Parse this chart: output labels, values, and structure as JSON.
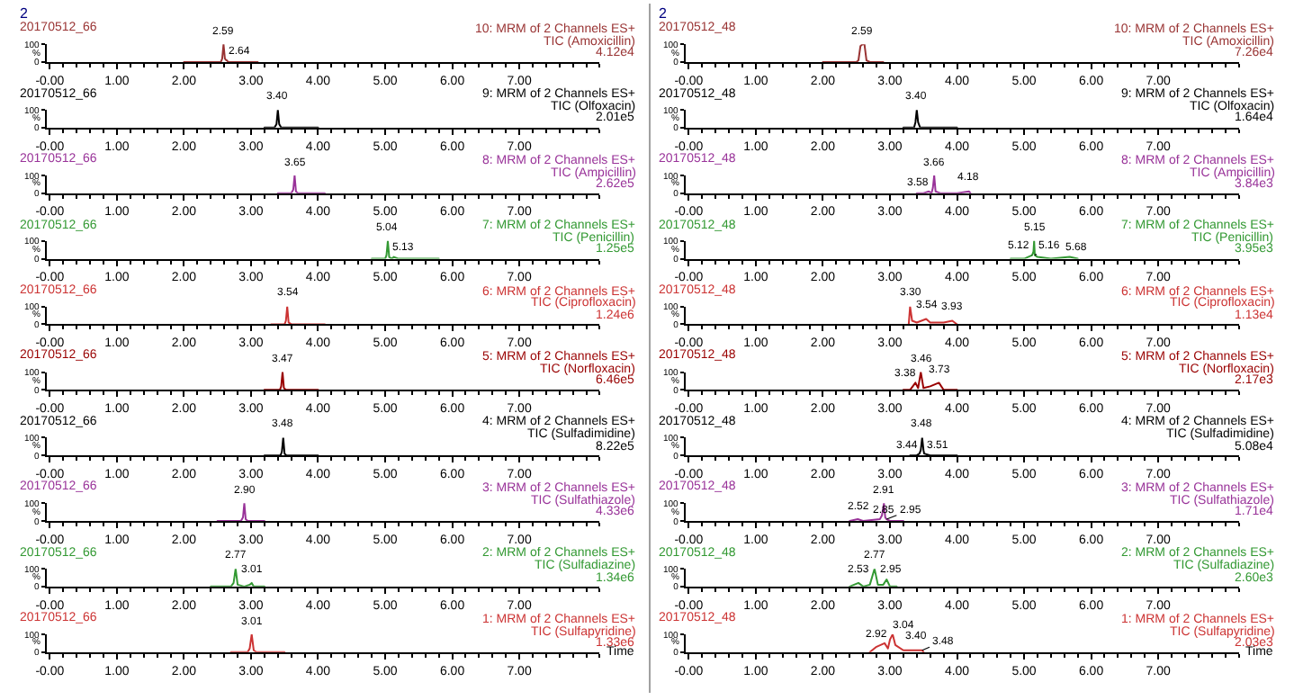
{
  "chart_data": [
    {
      "type": "line",
      "title": "20170512_66",
      "subtitle": "10: MRM of 2 Channels ES+",
      "ylabel": "%",
      "annotations": [
        "2",
        "TIC (Amoxicillin)",
        "4.12e4",
        {
          "text": "2.59",
          "x": 2.59,
          "y": 100
        },
        {
          "text": "2.64",
          "x": 2.64,
          "y": 10
        }
      ],
      "series": [
        {
          "color": "#993333",
          "x": [
            2.0,
            2.55,
            2.57,
            2.59,
            2.61,
            2.63,
            2.64,
            2.66,
            3.1
          ],
          "values": [
            0,
            0,
            20,
            100,
            20,
            10,
            10,
            0,
            0
          ]
        }
      ],
      "xlim": [
        -0.05,
        8.2
      ],
      "xticks": [
        {
          "value": 0,
          "label": "-0.00"
        },
        {
          "value": 1,
          "label": "1.00"
        },
        {
          "value": 2,
          "label": "2.00"
        },
        {
          "value": 3,
          "label": "3.00"
        },
        {
          "value": 4,
          "label": "4.00"
        },
        {
          "value": 5,
          "label": "5.00"
        },
        {
          "value": 6,
          "label": "6.00"
        },
        {
          "value": 7,
          "label": "7.00"
        }
      ],
      "ylim": [
        0,
        100
      ],
      "yticks": [
        0,
        100
      ]
    },
    {
      "type": "line",
      "title": "20170512_66",
      "subtitle": "9: MRM of 2 Channels ES+",
      "ylabel": "%",
      "annotations": [
        "TIC (Olfoxacin)",
        "2.01e5",
        {
          "text": "3.40",
          "x": 3.4,
          "y": 100
        }
      ],
      "series": [
        {
          "color": "#000000",
          "x": [
            3.2,
            3.35,
            3.38,
            3.4,
            3.42,
            3.45,
            4.0
          ],
          "values": [
            0,
            0,
            20,
            100,
            20,
            0,
            0
          ]
        }
      ],
      "xlim": [
        -0.05,
        8.2
      ],
      "xticks": [
        {
          "value": 0,
          "label": "-0.00"
        },
        {
          "value": 1,
          "label": "1.00"
        },
        {
          "value": 2,
          "label": "2.00"
        },
        {
          "value": 3,
          "label": "3.00"
        },
        {
          "value": 4,
          "label": "4.00"
        },
        {
          "value": 5,
          "label": "5.00"
        },
        {
          "value": 6,
          "label": "6.00"
        },
        {
          "value": 7,
          "label": "7.00"
        }
      ],
      "ylim": [
        0,
        100
      ],
      "yticks": [
        0,
        100
      ]
    },
    {
      "type": "line",
      "title": "20170512_66",
      "subtitle": "8: MRM of 2 Channels ES+",
      "ylabel": "%",
      "annotations": [
        "TIC (Ampicillin)",
        "2.62e5",
        {
          "text": "3.65",
          "x": 3.65,
          "y": 100
        }
      ],
      "series": [
        {
          "color": "#993399",
          "x": [
            3.4,
            3.6,
            3.63,
            3.65,
            3.67,
            3.7,
            4.1
          ],
          "values": [
            0,
            0,
            20,
            100,
            10,
            0,
            0
          ]
        }
      ],
      "xlim": [
        -0.05,
        8.2
      ],
      "xticks": [
        {
          "value": 0,
          "label": "-0.00"
        },
        {
          "value": 1,
          "label": "1.00"
        },
        {
          "value": 2,
          "label": "2.00"
        },
        {
          "value": 3,
          "label": "3.00"
        },
        {
          "value": 4,
          "label": "4.00"
        },
        {
          "value": 5,
          "label": "5.00"
        },
        {
          "value": 6,
          "label": "6.00"
        },
        {
          "value": 7,
          "label": "7.00"
        }
      ],
      "ylim": [
        0,
        100
      ],
      "yticks": [
        0,
        100
      ]
    },
    {
      "type": "line",
      "title": "20170512_66",
      "subtitle": "7: MRM of 2 Channels ES+",
      "ylabel": "%",
      "annotations": [
        "TIC (Penicillin)",
        "1.25e5",
        {
          "text": "5.04",
          "x": 5.04,
          "y": 100
        },
        {
          "text": "5.13",
          "x": 5.13,
          "y": 10
        }
      ],
      "series": [
        {
          "color": "#339933",
          "x": [
            4.8,
            5.0,
            5.02,
            5.04,
            5.06,
            5.1,
            5.13,
            5.2,
            5.8
          ],
          "values": [
            0,
            0,
            20,
            100,
            10,
            0,
            10,
            0,
            0
          ]
        }
      ],
      "xlim": [
        -0.05,
        8.2
      ],
      "xticks": [
        {
          "value": 0,
          "label": "-0.00"
        },
        {
          "value": 1,
          "label": "1.00"
        },
        {
          "value": 2,
          "label": "2.00"
        },
        {
          "value": 3,
          "label": "3.00"
        },
        {
          "value": 4,
          "label": "4.00"
        },
        {
          "value": 5,
          "label": "5.00"
        },
        {
          "value": 6,
          "label": "6.00"
        },
        {
          "value": 7,
          "label": "7.00"
        }
      ],
      "ylim": [
        0,
        100
      ],
      "yticks": [
        0,
        100
      ]
    },
    {
      "type": "line",
      "title": "20170512_66",
      "subtitle": "6: MRM of 2 Channels ES+",
      "ylabel": "%",
      "annotations": [
        "TIC (Ciprofloxacin)",
        "1.24e6",
        {
          "text": "3.54",
          "x": 3.54,
          "y": 100
        }
      ],
      "series": [
        {
          "color": "#cc3333",
          "x": [
            3.3,
            3.5,
            3.52,
            3.54,
            3.56,
            3.6,
            4.1
          ],
          "values": [
            0,
            0,
            20,
            100,
            10,
            0,
            0
          ]
        }
      ],
      "xlim": [
        -0.05,
        8.2
      ],
      "xticks": [
        {
          "value": 0,
          "label": "-0.00"
        },
        {
          "value": 1,
          "label": "1.00"
        },
        {
          "value": 2,
          "label": "2.00"
        },
        {
          "value": 3,
          "label": "3.00"
        },
        {
          "value": 4,
          "label": "4.00"
        },
        {
          "value": 5,
          "label": "5.00"
        },
        {
          "value": 6,
          "label": "6.00"
        },
        {
          "value": 7,
          "label": "7.00"
        }
      ],
      "ylim": [
        0,
        100
      ],
      "yticks": [
        0,
        100
      ]
    },
    {
      "type": "line",
      "title": "20170512_66",
      "subtitle": "5: MRM of 2 Channels ES+",
      "ylabel": "%",
      "annotations": [
        "TIC (Norfloxacin)",
        "6.46e5",
        {
          "text": "3.47",
          "x": 3.47,
          "y": 100
        }
      ],
      "series": [
        {
          "color": "#990000",
          "x": [
            3.2,
            3.43,
            3.45,
            3.47,
            3.49,
            3.52,
            4.0
          ],
          "values": [
            0,
            0,
            20,
            100,
            10,
            0,
            0
          ]
        }
      ],
      "xlim": [
        -0.05,
        8.2
      ],
      "xticks": [
        {
          "value": 0,
          "label": "-0.00"
        },
        {
          "value": 1,
          "label": "1.00"
        },
        {
          "value": 2,
          "label": "2.00"
        },
        {
          "value": 3,
          "label": "3.00"
        },
        {
          "value": 4,
          "label": "4.00"
        },
        {
          "value": 5,
          "label": "5.00"
        },
        {
          "value": 6,
          "label": "6.00"
        },
        {
          "value": 7,
          "label": "7.00"
        }
      ],
      "ylim": [
        0,
        100
      ],
      "yticks": [
        0,
        100
      ]
    },
    {
      "type": "line",
      "title": "20170512_66",
      "subtitle": "4: MRM of 2 Channels ES+",
      "ylabel": "%",
      "annotations": [
        "TIC (Sulfadimidine)",
        "8.22e5",
        {
          "text": "3.48",
          "x": 3.48,
          "y": 100
        }
      ],
      "series": [
        {
          "color": "#000000",
          "x": [
            3.2,
            3.44,
            3.46,
            3.48,
            3.5,
            3.53,
            4.0
          ],
          "values": [
            0,
            0,
            20,
            100,
            10,
            0,
            0
          ]
        }
      ],
      "xlim": [
        -0.05,
        8.2
      ],
      "xticks": [
        {
          "value": 0,
          "label": "-0.00"
        },
        {
          "value": 1,
          "label": "1.00"
        },
        {
          "value": 2,
          "label": "2.00"
        },
        {
          "value": 3,
          "label": "3.00"
        },
        {
          "value": 4,
          "label": "4.00"
        },
        {
          "value": 5,
          "label": "5.00"
        },
        {
          "value": 6,
          "label": "6.00"
        },
        {
          "value": 7,
          "label": "7.00"
        }
      ],
      "ylim": [
        0,
        100
      ],
      "yticks": [
        0,
        100
      ]
    },
    {
      "type": "line",
      "title": "20170512_66",
      "subtitle": "3: MRM of 2 Channels ES+",
      "ylabel": "%",
      "annotations": [
        "TIC (Sulfathiazole)",
        "4.33e6",
        {
          "text": "2.90",
          "x": 2.9,
          "y": 100
        }
      ],
      "series": [
        {
          "color": "#993399",
          "x": [
            2.5,
            2.85,
            2.88,
            2.9,
            2.92,
            2.95,
            3.2
          ],
          "values": [
            0,
            0,
            20,
            100,
            10,
            0,
            0
          ]
        }
      ],
      "xlim": [
        -0.05,
        8.2
      ],
      "xticks": [
        {
          "value": 0,
          "label": "-0.00"
        },
        {
          "value": 1,
          "label": "1.00"
        },
        {
          "value": 2,
          "label": "2.00"
        },
        {
          "value": 3,
          "label": "3.00"
        },
        {
          "value": 4,
          "label": "4.00"
        },
        {
          "value": 5,
          "label": "5.00"
        },
        {
          "value": 6,
          "label": "6.00"
        },
        {
          "value": 7,
          "label": "7.00"
        }
      ],
      "ylim": [
        0,
        100
      ],
      "yticks": [
        0,
        100
      ]
    },
    {
      "type": "line",
      "title": "20170512_66",
      "subtitle": "2: MRM of 2 Channels ES+",
      "ylabel": "%",
      "annotations": [
        "TIC (Sulfadiazine)",
        "1.34e6",
        {
          "text": "2.77",
          "x": 2.77,
          "y": 100
        },
        {
          "text": "3.01",
          "x": 3.01,
          "y": 20
        }
      ],
      "series": [
        {
          "color": "#339933",
          "x": [
            2.4,
            2.7,
            2.74,
            2.77,
            2.8,
            2.9,
            2.98,
            3.01,
            3.04,
            3.2
          ],
          "values": [
            0,
            0,
            20,
            100,
            10,
            0,
            10,
            20,
            0,
            0
          ]
        }
      ],
      "xlim": [
        -0.05,
        8.2
      ],
      "xticks": [
        {
          "value": 0,
          "label": "-0.00"
        },
        {
          "value": 1,
          "label": "1.00"
        },
        {
          "value": 2,
          "label": "2.00"
        },
        {
          "value": 3,
          "label": "3.00"
        },
        {
          "value": 4,
          "label": "4.00"
        },
        {
          "value": 5,
          "label": "5.00"
        },
        {
          "value": 6,
          "label": "6.00"
        },
        {
          "value": 7,
          "label": "7.00"
        }
      ],
      "ylim": [
        0,
        100
      ],
      "yticks": [
        0,
        100
      ]
    },
    {
      "type": "line",
      "title": "20170512_66",
      "subtitle": "1: MRM of 2 Channels ES+",
      "ylabel": "%",
      "xlabel": "Time",
      "annotations": [
        "TIC (Sulfapyridine)",
        "1.33e6",
        {
          "text": "3.01",
          "x": 3.01,
          "y": 100
        }
      ],
      "series": [
        {
          "color": "#cc3333",
          "x": [
            2.7,
            2.95,
            2.98,
            3.01,
            3.04,
            3.08,
            3.5
          ],
          "values": [
            0,
            0,
            20,
            100,
            10,
            0,
            0
          ]
        }
      ],
      "xlim": [
        -0.05,
        8.2
      ],
      "xticks": [
        {
          "value": 0,
          "label": "-0.00"
        },
        {
          "value": 1,
          "label": "1.00"
        },
        {
          "value": 2,
          "label": "2.00"
        },
        {
          "value": 3,
          "label": "3.00"
        },
        {
          "value": 4,
          "label": "4.00"
        },
        {
          "value": 5,
          "label": "5.00"
        },
        {
          "value": 6,
          "label": "6.00"
        },
        {
          "value": 7,
          "label": "7.00"
        }
      ],
      "ylim": [
        0,
        100
      ],
      "yticks": [
        0,
        100
      ]
    },
    {
      "type": "line",
      "title": "20170512_48",
      "subtitle": "10: MRM of 2 Channels ES+",
      "ylabel": "%",
      "annotations": [
        "2",
        "TIC (Amoxicillin)",
        "7.26e4",
        {
          "text": "2.59",
          "x": 2.59,
          "y": 100
        }
      ],
      "series": [
        {
          "color": "#993333",
          "x": [
            2.0,
            2.5,
            2.53,
            2.56,
            2.59,
            2.62,
            2.65,
            2.7,
            2.9
          ],
          "values": [
            0,
            0,
            10,
            90,
            100,
            100,
            10,
            0,
            0
          ]
        }
      ],
      "xlim": [
        -0.05,
        8.2
      ],
      "xticks": [
        {
          "value": 0,
          "label": "-0.00"
        },
        {
          "value": 1,
          "label": "1.00"
        },
        {
          "value": 2,
          "label": "2.00"
        },
        {
          "value": 3,
          "label": "3.00"
        },
        {
          "value": 4,
          "label": "4.00"
        },
        {
          "value": 5,
          "label": "5.00"
        },
        {
          "value": 6,
          "label": "6.00"
        },
        {
          "value": 7,
          "label": "7.00"
        }
      ],
      "ylim": [
        0,
        100
      ],
      "yticks": [
        0,
        100
      ]
    },
    {
      "type": "line",
      "title": "20170512_48",
      "subtitle": "9: MRM of 2 Channels ES+",
      "ylabel": "%",
      "annotations": [
        "TIC (Olfoxacin)",
        "1.64e4",
        {
          "text": "3.40",
          "x": 3.4,
          "y": 100
        }
      ],
      "series": [
        {
          "color": "#000000",
          "x": [
            3.2,
            3.36,
            3.38,
            3.4,
            3.42,
            3.45,
            4.0
          ],
          "values": [
            0,
            0,
            30,
            100,
            30,
            0,
            0
          ]
        }
      ],
      "xlim": [
        -0.05,
        8.2
      ],
      "xticks": [
        {
          "value": 0,
          "label": "-0.00"
        },
        {
          "value": 1,
          "label": "1.00"
        },
        {
          "value": 2,
          "label": "2.00"
        },
        {
          "value": 3,
          "label": "3.00"
        },
        {
          "value": 4,
          "label": "4.00"
        },
        {
          "value": 5,
          "label": "5.00"
        },
        {
          "value": 6,
          "label": "6.00"
        },
        {
          "value": 7,
          "label": "7.00"
        }
      ],
      "ylim": [
        0,
        100
      ],
      "yticks": [
        0,
        100
      ]
    },
    {
      "type": "line",
      "title": "20170512_48",
      "subtitle": "8: MRM of 2 Channels ES+",
      "ylabel": "%",
      "annotations": [
        "TIC (Ampicillin)",
        "3.84e3",
        {
          "text": "3.58",
          "x": 3.58,
          "y": 10
        },
        {
          "text": "3.66",
          "x": 3.66,
          "y": 100
        },
        {
          "text": "4.18",
          "x": 4.18,
          "y": 10
        }
      ],
      "series": [
        {
          "color": "#993399",
          "x": [
            3.4,
            3.5,
            3.58,
            3.62,
            3.64,
            3.66,
            3.68,
            3.75,
            4.0,
            4.18,
            4.2
          ],
          "values": [
            0,
            0,
            10,
            0,
            30,
            100,
            10,
            0,
            0,
            10,
            0
          ]
        }
      ],
      "xlim": [
        -0.05,
        8.2
      ],
      "xticks": [
        {
          "value": 0,
          "label": "-0.00"
        },
        {
          "value": 1,
          "label": "1.00"
        },
        {
          "value": 2,
          "label": "2.00"
        },
        {
          "value": 3,
          "label": "3.00"
        },
        {
          "value": 4,
          "label": "4.00"
        },
        {
          "value": 5,
          "label": "5.00"
        },
        {
          "value": 6,
          "label": "6.00"
        },
        {
          "value": 7,
          "label": "7.00"
        }
      ],
      "ylim": [
        0,
        100
      ],
      "yticks": [
        0,
        100
      ]
    },
    {
      "type": "line",
      "title": "20170512_48",
      "subtitle": "7: MRM of 2 Channels ES+",
      "ylabel": "%",
      "annotations": [
        "TIC (Penicillin)",
        "3.95e3",
        {
          "text": "5.12",
          "x": 5.12,
          "y": 20
        },
        {
          "text": "5.15",
          "x": 5.15,
          "y": 100
        },
        {
          "text": "5.16",
          "x": 5.16,
          "y": 20
        },
        {
          "text": "5.68",
          "x": 5.68,
          "y": 10
        }
      ],
      "series": [
        {
          "color": "#339933",
          "x": [
            4.8,
            5.0,
            5.12,
            5.14,
            5.15,
            5.16,
            5.2,
            5.4,
            5.68,
            5.8
          ],
          "values": [
            0,
            0,
            20,
            40,
            100,
            20,
            10,
            0,
            10,
            0
          ]
        }
      ],
      "xlim": [
        -0.05,
        8.2
      ],
      "xticks": [
        {
          "value": 0,
          "label": "-0.00"
        },
        {
          "value": 1,
          "label": "1.00"
        },
        {
          "value": 2,
          "label": "2.00"
        },
        {
          "value": 3,
          "label": "3.00"
        },
        {
          "value": 4,
          "label": "4.00"
        },
        {
          "value": 5,
          "label": "5.00"
        },
        {
          "value": 6,
          "label": "6.00"
        },
        {
          "value": 7,
          "label": "7.00"
        }
      ],
      "ylim": [
        0,
        100
      ],
      "yticks": [
        0,
        100
      ]
    },
    {
      "type": "line",
      "title": "20170512_48",
      "subtitle": "6: MRM of 2 Channels ES+",
      "ylabel": "%",
      "annotations": [
        "TIC (Ciprofloxacin)",
        "1.13e4",
        {
          "text": "3.30",
          "x": 3.3,
          "y": 100
        },
        {
          "text": "3.54",
          "x": 3.54,
          "y": 30
        },
        {
          "text": "3.93",
          "x": 3.93,
          "y": 20
        }
      ],
      "series": [
        {
          "color": "#cc3333",
          "x": [
            3.28,
            3.3,
            3.33,
            3.4,
            3.54,
            3.6,
            3.8,
            3.93,
            4.0
          ],
          "values": [
            0,
            100,
            20,
            10,
            30,
            10,
            10,
            20,
            0
          ]
        }
      ],
      "xlim": [
        -0.05,
        8.2
      ],
      "xticks": [
        {
          "value": 0,
          "label": "-0.00"
        },
        {
          "value": 1,
          "label": "1.00"
        },
        {
          "value": 2,
          "label": "2.00"
        },
        {
          "value": 3,
          "label": "3.00"
        },
        {
          "value": 4,
          "label": "4.00"
        },
        {
          "value": 5,
          "label": "5.00"
        },
        {
          "value": 6,
          "label": "6.00"
        },
        {
          "value": 7,
          "label": "7.00"
        }
      ],
      "ylim": [
        0,
        100
      ],
      "yticks": [
        0,
        100
      ]
    },
    {
      "type": "line",
      "title": "20170512_48",
      "subtitle": "5: MRM of 2 Channels ES+",
      "ylabel": "%",
      "annotations": [
        "TIC (Norfloxacin)",
        "2.17e3",
        {
          "text": "3.38",
          "x": 3.38,
          "y": 40
        },
        {
          "text": "3.46",
          "x": 3.46,
          "y": 100
        },
        {
          "text": "3.73",
          "x": 3.73,
          "y": 40
        }
      ],
      "series": [
        {
          "color": "#990000",
          "x": [
            3.2,
            3.3,
            3.38,
            3.42,
            3.46,
            3.5,
            3.6,
            3.73,
            3.8,
            4.0
          ],
          "values": [
            0,
            0,
            40,
            10,
            100,
            10,
            20,
            40,
            0,
            0
          ]
        }
      ],
      "xlim": [
        -0.05,
        8.2
      ],
      "xticks": [
        {
          "value": 0,
          "label": "-0.00"
        },
        {
          "value": 1,
          "label": "1.00"
        },
        {
          "value": 2,
          "label": "2.00"
        },
        {
          "value": 3,
          "label": "3.00"
        },
        {
          "value": 4,
          "label": "4.00"
        },
        {
          "value": 5,
          "label": "5.00"
        },
        {
          "value": 6,
          "label": "6.00"
        },
        {
          "value": 7,
          "label": "7.00"
        }
      ],
      "ylim": [
        0,
        100
      ],
      "yticks": [
        0,
        100
      ]
    },
    {
      "type": "line",
      "title": "20170512_48",
      "subtitle": "4: MRM of 2 Channels ES+",
      "ylabel": "%",
      "annotations": [
        "TIC (Sulfadimidine)",
        "5.08e4",
        {
          "text": "3.44",
          "x": 3.44,
          "y": 10
        },
        {
          "text": "3.48",
          "x": 3.48,
          "y": 100
        },
        {
          "text": "3.51",
          "x": 3.51,
          "y": 10
        }
      ],
      "series": [
        {
          "color": "#000000",
          "x": [
            3.3,
            3.4,
            3.44,
            3.46,
            3.48,
            3.5,
            3.51,
            3.6,
            4.0
          ],
          "values": [
            0,
            0,
            10,
            30,
            100,
            30,
            10,
            0,
            0
          ]
        }
      ],
      "xlim": [
        -0.05,
        8.2
      ],
      "xticks": [
        {
          "value": 0,
          "label": "-0.00"
        },
        {
          "value": 1,
          "label": "1.00"
        },
        {
          "value": 2,
          "label": "2.00"
        },
        {
          "value": 3,
          "label": "3.00"
        },
        {
          "value": 4,
          "label": "4.00"
        },
        {
          "value": 5,
          "label": "5.00"
        },
        {
          "value": 6,
          "label": "6.00"
        },
        {
          "value": 7,
          "label": "7.00"
        }
      ],
      "ylim": [
        0,
        100
      ],
      "yticks": [
        0,
        100
      ]
    },
    {
      "type": "line",
      "title": "20170512_48",
      "subtitle": "3: MRM of 2 Channels ES+",
      "ylabel": "%",
      "annotations": [
        "TIC (Sulfathiazole)",
        "1.71e4",
        {
          "text": "2.52",
          "x": 2.52,
          "y": 10
        },
        {
          "text": "2.85",
          "x": 2.85,
          "y": 10
        },
        {
          "text": "2.91",
          "x": 2.91,
          "y": 100
        },
        {
          "text": "2.95",
          "x": 2.95,
          "y": 10
        }
      ],
      "series": [
        {
          "color": "#993399",
          "x": [
            2.4,
            2.52,
            2.6,
            2.85,
            2.88,
            2.91,
            2.93,
            2.95,
            3.0,
            3.2
          ],
          "values": [
            0,
            10,
            0,
            10,
            30,
            100,
            20,
            10,
            0,
            0
          ]
        }
      ],
      "xlim": [
        -0.05,
        8.2
      ],
      "xticks": [
        {
          "value": 0,
          "label": "-0.00"
        },
        {
          "value": 1,
          "label": "1.00"
        },
        {
          "value": 2,
          "label": "2.00"
        },
        {
          "value": 3,
          "label": "3.00"
        },
        {
          "value": 4,
          "label": "4.00"
        },
        {
          "value": 5,
          "label": "5.00"
        },
        {
          "value": 6,
          "label": "6.00"
        },
        {
          "value": 7,
          "label": "7.00"
        }
      ],
      "ylim": [
        0,
        100
      ],
      "yticks": [
        0,
        100
      ]
    },
    {
      "type": "line",
      "title": "20170512_48",
      "subtitle": "2: MRM of 2 Channels ES+",
      "ylabel": "%",
      "annotations": [
        "TIC (Sulfadiazine)",
        "2.60e3",
        {
          "text": "2.53",
          "x": 2.53,
          "y": 20
        },
        {
          "text": "2.77",
          "x": 2.77,
          "y": 100
        },
        {
          "text": "2.95",
          "x": 2.95,
          "y": 40
        }
      ],
      "series": [
        {
          "color": "#339933",
          "x": [
            2.4,
            2.53,
            2.6,
            2.7,
            2.77,
            2.82,
            2.9,
            2.95,
            3.0,
            3.1
          ],
          "values": [
            0,
            20,
            0,
            10,
            100,
            10,
            10,
            40,
            0,
            0
          ]
        }
      ],
      "xlim": [
        -0.05,
        8.2
      ],
      "xticks": [
        {
          "value": 0,
          "label": "-0.00"
        },
        {
          "value": 1,
          "label": "1.00"
        },
        {
          "value": 2,
          "label": "2.00"
        },
        {
          "value": 3,
          "label": "3.00"
        },
        {
          "value": 4,
          "label": "4.00"
        },
        {
          "value": 5,
          "label": "5.00"
        },
        {
          "value": 6,
          "label": "6.00"
        },
        {
          "value": 7,
          "label": "7.00"
        }
      ],
      "ylim": [
        0,
        100
      ],
      "yticks": [
        0,
        100
      ]
    },
    {
      "type": "line",
      "title": "20170512_48",
      "subtitle": "1: MRM of 2 Channels ES+",
      "ylabel": "%",
      "xlabel": "Time",
      "annotations": [
        "TIC (Sulfapyridine)",
        "2.03e3",
        {
          "text": "2.92",
          "x": 2.92,
          "y": 50
        },
        {
          "text": "3.04",
          "x": 3.04,
          "y": 100
        },
        {
          "text": "3.40",
          "x": 3.4,
          "y": 10
        },
        {
          "text": "3.48",
          "x": 3.48,
          "y": 10
        }
      ],
      "series": [
        {
          "color": "#cc3333",
          "x": [
            2.7,
            2.8,
            2.92,
            2.97,
            3.0,
            3.04,
            3.08,
            3.2,
            3.4,
            3.48,
            3.5
          ],
          "values": [
            0,
            30,
            50,
            20,
            70,
            100,
            40,
            10,
            10,
            10,
            0
          ]
        }
      ],
      "xlim": [
        -0.05,
        8.2
      ],
      "xticks": [
        {
          "value": 0,
          "label": "-0.00"
        },
        {
          "value": 1,
          "label": "1.00"
        },
        {
          "value": 2,
          "label": "2.00"
        },
        {
          "value": 3,
          "label": "3.00"
        },
        {
          "value": 4,
          "label": "4.00"
        },
        {
          "value": 5,
          "label": "5.00"
        },
        {
          "value": 6,
          "label": "6.00"
        },
        {
          "value": 7,
          "label": "7.00"
        }
      ],
      "ylim": [
        0,
        100
      ],
      "yticks": [
        0,
        100
      ]
    }
  ]
}
